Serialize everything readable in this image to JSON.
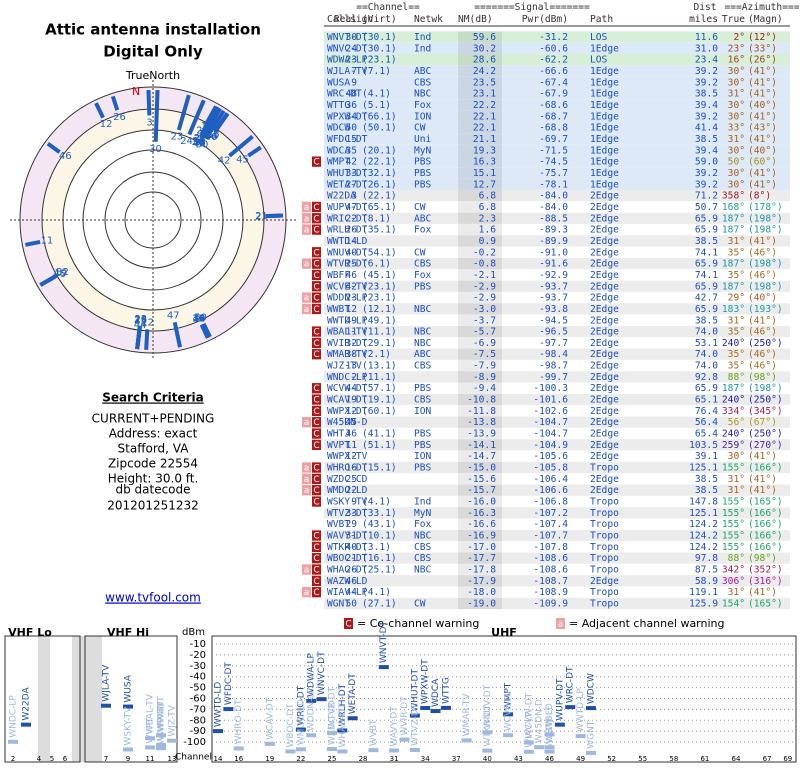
{
  "header": {
    "title": "Attic antenna installation",
    "subtitle": "Digital Only",
    "north": "TrueNorth",
    "n": "N"
  },
  "criteria": {
    "heading": "Search Criteria",
    "lines": [
      "CURRENT+PENDING",
      "Address: exact",
      "Stafford, VA",
      "Zipcode 22554",
      "Height: 30.0 ft."
    ],
    "db_label": "db datecode",
    "db_code": "201201251232",
    "link": "www.tvfool.com"
  },
  "table": {
    "groups": [
      "==Channel==",
      "=======Signal=======",
      "Dist",
      "===Azimuth==="
    ],
    "columns": [
      "Callsign",
      "Real",
      "(Virt)",
      "Netwk",
      "NM(dB)",
      "Pwr(dBm)",
      "Path",
      "miles",
      "True",
      "(Magn)"
    ],
    "rows": [
      [
        null,
        "WNVT-DT",
        "30",
        "(30.1)",
        "Ind",
        "59.6",
        "-31.2",
        "LOS",
        "11.6",
        "2°",
        "(12°)"
      ],
      [
        null,
        "WNVC-DT",
        "24",
        "(30.1)",
        "Ind",
        "30.2",
        "-60.6",
        "1Edge",
        "31.0",
        "23°",
        "(33°)"
      ],
      [
        null,
        "WDWA-LP",
        "23",
        "(23.1)",
        null,
        "28.6",
        "-62.2",
        "LOS",
        "23.4",
        "16°",
        "(26°)"
      ],
      [
        null,
        "WJLA-TV",
        "7",
        "(7.1)",
        "ABC",
        "24.2",
        "-66.6",
        "1Edge",
        "39.2",
        "30°",
        "(41°)"
      ],
      [
        null,
        "WUSA",
        "9",
        null,
        "CBS",
        "23.5",
        "-67.4",
        "1Edge",
        "39.2",
        "30°",
        "(41°)"
      ],
      [
        null,
        "WRC-DT",
        "48",
        "(4.1)",
        "NBC",
        "23.1",
        "-67.9",
        "1Edge",
        "38.5",
        "31°",
        "(41°)"
      ],
      [
        null,
        "WTTG",
        "36",
        "(5.1)",
        "Fox",
        "22.2",
        "-68.6",
        "1Edge",
        "39.4",
        "30°",
        "(40°)"
      ],
      [
        null,
        "WPXW-DT",
        "34",
        "(66.1)",
        "ION",
        "22.1",
        "-68.7",
        "1Edge",
        "39.2",
        "30°",
        "(41°)"
      ],
      [
        null,
        "WDCW",
        "50",
        "(50.1)",
        "CW",
        "22.1",
        "-68.8",
        "1Edge",
        "41.4",
        "33°",
        "(43°)"
      ],
      [
        null,
        "WFDC-DT",
        "15",
        null,
        "Uni",
        "21.1",
        "-69.7",
        "1Edge",
        "38.5",
        "31°",
        "(41°)"
      ],
      [
        null,
        "WDCA",
        "35",
        "(20.1)",
        "MyN",
        "19.3",
        "-71.5",
        "1Edge",
        "39.4",
        "30°",
        "(40°)"
      ],
      [
        [
          "C"
        ],
        "WMPT",
        "42",
        "(22.1)",
        "PBS",
        "16.3",
        "-74.5",
        "1Edge",
        "59.0",
        "50°",
        "(60°)"
      ],
      [
        null,
        "WHUT-DT",
        "33",
        "(32.1)",
        "PBS",
        "15.1",
        "-75.7",
        "1Edge",
        "39.2",
        "30°",
        "(41°)"
      ],
      [
        null,
        "WETA-DT",
        "27",
        "(26.1)",
        "PBS",
        "12.7",
        "-78.1",
        "1Edge",
        "39.2",
        "30°",
        "(41°)"
      ],
      [
        null,
        "W22DA",
        "3",
        "(22.1)",
        null,
        "6.8",
        "-84.0",
        "2Edge",
        "71.2",
        "358°",
        "(8°)"
      ],
      [
        [
          "a",
          "C"
        ],
        "WUPV-DT",
        "47",
        "(65.1)",
        "CW",
        "6.8",
        "-84.0",
        "2Edge",
        "50.7",
        "168°",
        "(178°)"
      ],
      [
        [
          "a",
          "C"
        ],
        "WRIC-DT",
        "22",
        "(8.1)",
        "ABC",
        "2.3",
        "-88.5",
        "2Edge",
        "65.9",
        "187°",
        "(198°)"
      ],
      [
        [
          "a",
          "C"
        ],
        "WRLH-DT",
        "26",
        "(35.1)",
        "Fox",
        "1.6",
        "-89.3",
        "2Edge",
        "65.9",
        "187°",
        "(198°)"
      ],
      [
        null,
        "WWTD-LD",
        "14",
        null,
        null,
        "0.9",
        "-89.9",
        "2Edge",
        "38.5",
        "31°",
        "(41°)"
      ],
      [
        [
          "C"
        ],
        "WNUV-DT",
        "40",
        "(54.1)",
        "CW",
        "-0.2",
        "-91.0",
        "2Edge",
        "74.1",
        "35°",
        "(46°)"
      ],
      [
        [
          "a",
          "C"
        ],
        "WTVR-DT",
        "25",
        "(6.1)",
        "CBS",
        "-0.8",
        "-91.6",
        "2Edge",
        "65.9",
        "187°",
        "(198°)"
      ],
      [
        [
          "C"
        ],
        "WBFF",
        "46",
        "(45.1)",
        "Fox",
        "-2.1",
        "-92.9",
        "2Edge",
        "74.1",
        "35°",
        "(46°)"
      ],
      [
        [
          "C"
        ],
        "WCVE-TV",
        "42",
        "(23.1)",
        "PBS",
        "-2.9",
        "-93.7",
        "2Edge",
        "65.9",
        "187°",
        "(198°)"
      ],
      [
        [
          "a",
          "C"
        ],
        "WDDN-LP",
        "23",
        "(23.1)",
        null,
        "-2.9",
        "-93.7",
        "2Edge",
        "42.7",
        "29°",
        "(40°)"
      ],
      [
        [
          "a",
          "C"
        ],
        "WWBT",
        "12",
        "(12.1)",
        "NBC",
        "-3.0",
        "-93.8",
        "2Edge",
        "65.9",
        "183°",
        "(193°)"
      ],
      [
        null,
        "WWTD-LP",
        "49",
        "(49.1)",
        null,
        "-3.7",
        "-94.5",
        "2Edge",
        "38.5",
        "31°",
        "(41°)"
      ],
      [
        [
          "C"
        ],
        "WBAL-TV",
        "11",
        "(11.1)",
        "NBC",
        "-5.7",
        "-96.5",
        "2Edge",
        "74.0",
        "35°",
        "(46°)"
      ],
      [
        [
          "C"
        ],
        "WVIR-DT",
        "32",
        "(29.1)",
        "NBC",
        "-6.9",
        "-97.7",
        "2Edge",
        "53.1",
        "240°",
        "(250°)"
      ],
      [
        [
          "C"
        ],
        "WMAR-TV",
        "38",
        "(2.1)",
        "ABC",
        "-7.5",
        "-98.4",
        "2Edge",
        "74.0",
        "35°",
        "(46°)"
      ],
      [
        null,
        "WJZ-TV",
        "13",
        "(13.1)",
        "CBS",
        "-7.9",
        "-98.7",
        "2Edge",
        "74.0",
        "35°",
        "(46°)"
      ],
      [
        null,
        "WNDC-LP",
        "2",
        "(11.1)",
        null,
        "-8.9",
        "-99.7",
        "2Edge",
        "92.8",
        "88°",
        "(98°)"
      ],
      [
        [
          "C"
        ],
        "WCVW-DT",
        "44",
        "(57.1)",
        "PBS",
        "-9.4",
        "-100.3",
        "2Edge",
        "65.9",
        "187°",
        "(198°)"
      ],
      [
        [
          "C"
        ],
        "WCAV-DT",
        "19",
        "(19.1)",
        "CBS",
        "-10.8",
        "-101.6",
        "2Edge",
        "65.1",
        "240°",
        "(250°)"
      ],
      [
        [
          "C"
        ],
        "WWPX-DT",
        "12",
        "(60.1)",
        "ION",
        "-11.8",
        "-102.6",
        "2Edge",
        "76.4",
        "334°",
        "(345°)"
      ],
      [
        [
          "a",
          "C"
        ],
        "W45DN-D",
        "45",
        null,
        null,
        "-13.8",
        "-104.7",
        "2Edge",
        "56.4",
        "56°",
        "(67°)"
      ],
      [
        [
          "C"
        ],
        "WHTJ",
        "46",
        "(41.1)",
        "PBS",
        "-13.9",
        "-104.7",
        "2Edge",
        "65.4",
        "240°",
        "(250°)"
      ],
      [
        [
          "C"
        ],
        "WVPT",
        "11",
        "(51.1)",
        "PBS",
        "-14.1",
        "-104.9",
        "2Edge",
        "103.5",
        "259°",
        "(270°)"
      ],
      [
        null,
        "WWPX-TV",
        "12",
        null,
        "ION",
        "-14.7",
        "-105.6",
        "2Edge",
        "39.1",
        "30°",
        "(41°)"
      ],
      [
        [
          "a",
          "C"
        ],
        "WHRO-DT",
        "16",
        "(15.1)",
        "PBS",
        "-15.0",
        "-105.8",
        "Tropo",
        "125.1",
        "155°",
        "(166°)"
      ],
      [
        [
          "a",
          "C"
        ],
        "WZDC-CD",
        "25",
        null,
        null,
        "-15.6",
        "-106.4",
        "2Edge",
        "38.5",
        "31°",
        "(41°)"
      ],
      [
        [
          "a",
          "C"
        ],
        "WMDO-LD",
        "22",
        null,
        null,
        "-15.7",
        "-106.6",
        "2Edge",
        "38.5",
        "31°",
        "(41°)"
      ],
      [
        [
          "C"
        ],
        "WSKY-TV",
        "9",
        "(4.1)",
        "Ind",
        "-16.0",
        "-106.8",
        "Tropo",
        "147.8",
        "155°",
        "(165°)"
      ],
      [
        null,
        "WTVZ-DT",
        "33",
        "(33.1)",
        "MyN",
        "-16.3",
        "-107.2",
        "Tropo",
        "125.1",
        "155°",
        "(166°)"
      ],
      [
        null,
        "WVBT",
        "29",
        "(43.1)",
        "Fox",
        "-16.6",
        "-107.4",
        "Tropo",
        "124.2",
        "155°",
        "(166°)"
      ],
      [
        [
          "C"
        ],
        "WAVY-DT",
        "31",
        "(10.1)",
        "NBC",
        "-16.9",
        "-107.7",
        "Tropo",
        "124.2",
        "155°",
        "(166°)"
      ],
      [
        [
          "C"
        ],
        "WTKR-DT",
        "40",
        "(3.1)",
        "CBS",
        "-17.0",
        "-107.8",
        "Tropo",
        "124.2",
        "155°",
        "(166°)"
      ],
      [
        [
          "C"
        ],
        "WBOC-DT",
        "21",
        "(16.1)",
        "CBS",
        "-17.7",
        "-108.6",
        "Tropo",
        "97.8",
        "88°",
        "(98°)"
      ],
      [
        [
          "a",
          "C"
        ],
        "WHAG-DT",
        "26",
        "(25.1)",
        "NBC",
        "-17.8",
        "-108.6",
        "Tropo",
        "87.5",
        "342°",
        "(352°)"
      ],
      [
        [
          "C"
        ],
        "WAZW-LD",
        "46",
        null,
        null,
        "-17.9",
        "-108.7",
        "2Edge",
        "58.9",
        "306°",
        "(316°)"
      ],
      [
        [
          "a",
          "C"
        ],
        "WIAV-LP",
        "44",
        "(4.1)",
        null,
        "-18.0",
        "-108.9",
        "Tropo",
        "119.1",
        "31°",
        "(41°)"
      ],
      [
        null,
        "WGNT",
        "50",
        "(27.1)",
        "CW",
        "-19.0",
        "-109.9",
        "Tropo",
        "125.9",
        "154°",
        "(165°)"
      ]
    ]
  },
  "legend": [
    {
      "symbol": "C",
      "text": "= Co-channel warning"
    },
    {
      "symbol": "a",
      "text": "= Adjacent channel warning"
    }
  ],
  "spectrum": {
    "bands": [
      "VHF Lo",
      "VHF Hi",
      "UHF"
    ],
    "y_label": "dBm",
    "x_label": "Channel",
    "yticks": [
      -10,
      -20,
      -30,
      -40,
      -50,
      -60,
      -70,
      -80,
      -90,
      -100
    ],
    "xticks": [
      2,
      4,
      5,
      6,
      7,
      9,
      11,
      13,
      14,
      16,
      19,
      22,
      25,
      28,
      31,
      34,
      37,
      40,
      43,
      46,
      49,
      52,
      55,
      58,
      61,
      64,
      67,
      69
    ]
  }
}
